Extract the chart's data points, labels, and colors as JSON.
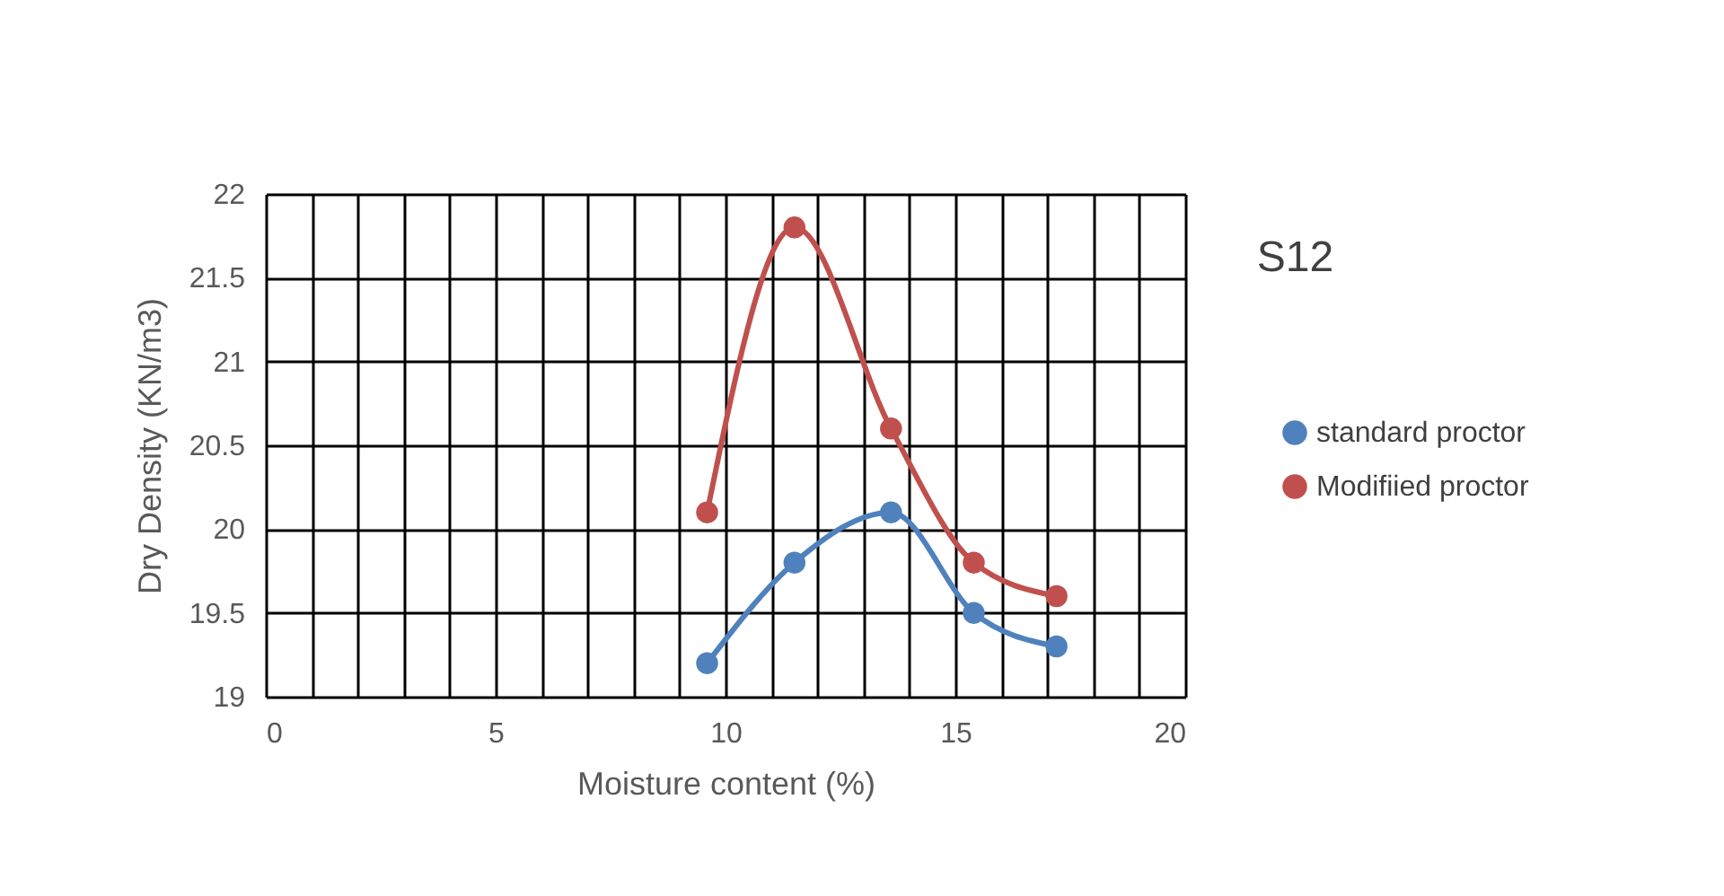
{
  "chart_data": {
    "type": "line",
    "title": "S12",
    "xlabel": "Moisture content (%)",
    "ylabel": "Dry Density (KN/m3)",
    "x": [
      9.6,
      11.5,
      13.6,
      15.4,
      17.2
    ],
    "series": [
      {
        "name": "standard proctor",
        "color": "#4f81bd",
        "values": [
          19.2,
          19.8,
          20.1,
          19.5,
          19.3
        ]
      },
      {
        "name": "Modifiied proctor",
        "color": "#c0504d",
        "values": [
          20.1,
          21.8,
          20.6,
          19.8,
          19.6
        ]
      }
    ],
    "xlim": [
      0,
      20
    ],
    "xticks": [
      0,
      {
        "value": 1,
        "label": null
      },
      {
        "value": 2,
        "label": null
      },
      {
        "value": 3,
        "label": null
      },
      {
        "value": 4,
        "label": null
      },
      5,
      {
        "value": 6,
        "label": null
      },
      {
        "value": 7,
        "label": null
      },
      {
        "value": 8,
        "label": null
      },
      {
        "value": 9,
        "label": null
      },
      10,
      {
        "value": 11,
        "label": null
      },
      {
        "value": 12,
        "label": null
      },
      {
        "value": 13,
        "label": null
      },
      {
        "value": 14,
        "label": null
      },
      15,
      {
        "value": 16,
        "label": null
      },
      {
        "value": 17,
        "label": null
      },
      {
        "value": 18,
        "label": null
      },
      {
        "value": 19,
        "label": null
      },
      20
    ],
    "ylim": [
      19,
      22
    ],
    "yticks": [
      19,
      19.5,
      20,
      20.5,
      21,
      21.5,
      22
    ],
    "grid": true,
    "legend": "right",
    "marker": "circle",
    "line_style": "solid"
  }
}
